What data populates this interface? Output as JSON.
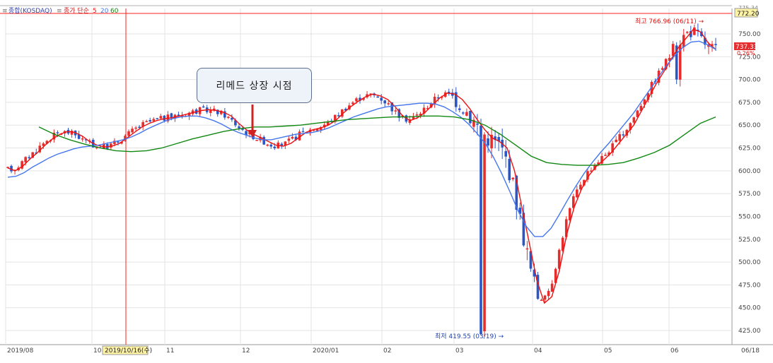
{
  "legend": {
    "item1": "종합(KOSDAQ)",
    "item2": "종가 단순",
    "ma_values": [
      "5",
      "20",
      "60"
    ]
  },
  "callout": "리메드 상장 시점",
  "annotations": {
    "high": "최고 766.96 (06/11) →",
    "low": "최저 419.55 (03/19) →"
  },
  "crosshair": {
    "date_label": "2019/10/16(수)",
    "price_label": "772.20"
  },
  "last_price": {
    "price": "737.33",
    "change": "0.26%",
    "top_partial": "775.34"
  },
  "colors": {
    "up": "#e52d2d",
    "down": "#2a56c6",
    "ma5": "#ee1111",
    "ma20": "#4477ee",
    "ma60": "#118811",
    "crosshair": "#ff2222"
  },
  "chart_data": {
    "type": "candlestick",
    "ylim": [
      410,
      775
    ],
    "y_ticks": [
      "425.00",
      "450.00",
      "475.00",
      "500.00",
      "525.00",
      "550.00",
      "575.00",
      "600.00",
      "625.00",
      "650.00",
      "675.00",
      "700.00",
      "725.00",
      "750.00"
    ],
    "x_ticks": [
      "2019/08",
      "10",
      "11",
      "12",
      "2020/01",
      "02",
      "03",
      "04",
      "05",
      "06",
      "06/18"
    ],
    "series": [
      {
        "name": "5",
        "values": [
          603,
          600,
          605,
          613,
          620,
          628,
          635,
          640,
          643,
          642,
          638,
          632,
          628,
          626,
          627,
          630,
          636,
          642,
          648,
          652,
          655,
          657,
          658,
          660,
          662,
          664,
          666,
          667,
          666,
          664,
          660,
          652,
          645,
          640,
          636,
          632,
          628,
          627,
          630,
          636,
          642,
          645,
          647,
          650,
          655,
          663,
          670,
          676,
          681,
          684,
          682,
          678,
          670,
          660,
          655,
          658,
          664,
          672,
          680,
          685,
          684,
          678,
          668,
          656,
          645,
          636,
          632,
          625,
          600,
          560,
          520,
          480,
          455,
          462,
          490,
          530,
          560,
          580,
          595,
          605,
          612,
          620,
          630,
          640,
          650,
          665,
          680,
          695,
          708,
          722,
          735,
          745,
          755,
          752,
          740,
          733
        ]
      },
      {
        "name": "20",
        "values": [
          593,
          594,
          598,
          604,
          609,
          614,
          618,
          621,
          624,
          626,
          627,
          628,
          630,
          632,
          634,
          637,
          641,
          646,
          650,
          654,
          657,
          659,
          660,
          660,
          658,
          655,
          651,
          646,
          642,
          639,
          636,
          634,
          634,
          636,
          638,
          640,
          641,
          642,
          644,
          647,
          651,
          655,
          659,
          662,
          665,
          668,
          670,
          671,
          672,
          673,
          674,
          674,
          673,
          670,
          665,
          659,
          651,
          641,
          630,
          615,
          597,
          577,
          556,
          539,
          528,
          528,
          537,
          552,
          568,
          583,
          597,
          609,
          620,
          630,
          641,
          652,
          663,
          676,
          689,
          702,
          715,
          726,
          735,
          741,
          742,
          738,
          733
        ]
      },
      {
        "name": "60",
        "values": [
          648,
          640,
          634,
          629,
          625,
          622,
          621,
          622,
          625,
          630,
          635,
          639,
          643,
          646,
          648,
          648,
          649,
          650,
          652,
          654,
          656,
          657,
          658,
          659,
          659,
          660,
          660,
          659,
          656,
          650,
          640,
          628,
          616,
          609,
          607,
          606,
          606,
          607,
          609,
          614,
          620,
          628,
          640,
          652,
          659
        ]
      }
    ],
    "highest": {
      "value": 766.96,
      "date": "06/11"
    },
    "lowest": {
      "value": 419.55,
      "date": "03/19"
    }
  }
}
